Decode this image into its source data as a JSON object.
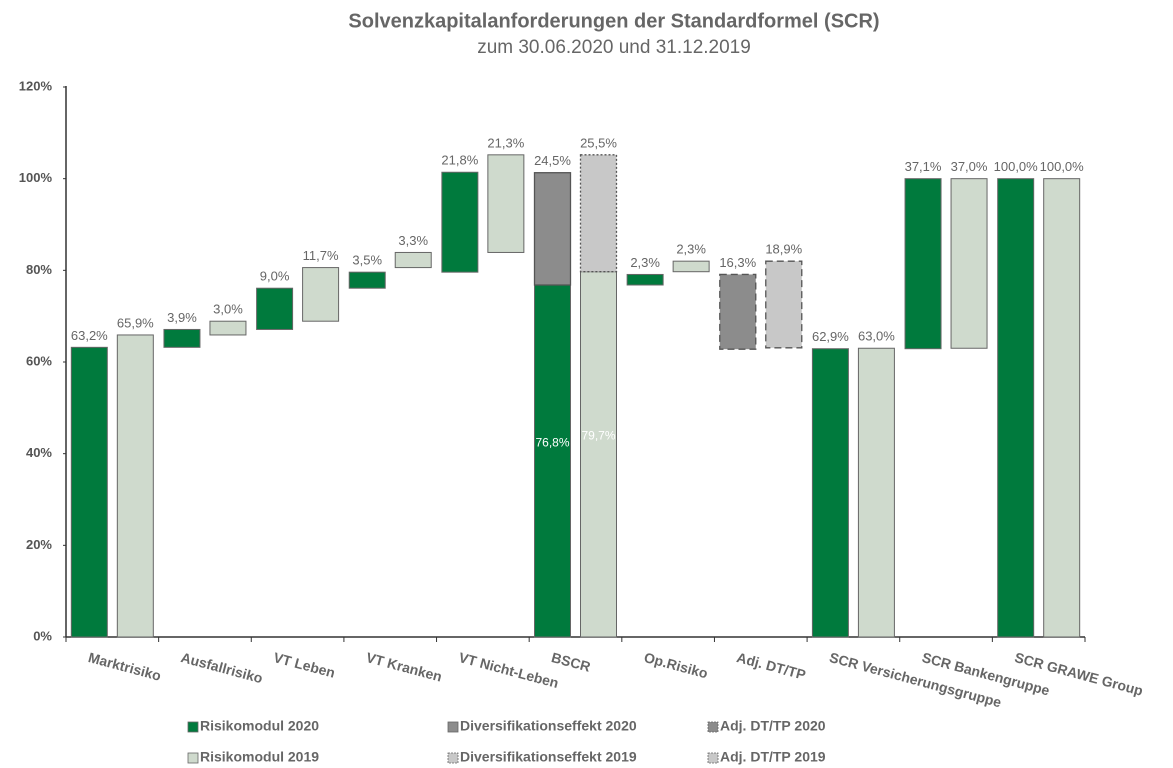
{
  "chart_data": {
    "type": "waterfall",
    "title": "Solvenzkapitalanforderungen der Standardformel (SCR)",
    "subtitle": "zum 30.06.2020 und 31.12.2019",
    "categories": [
      "Marktrisiko",
      "Ausfallrisiko",
      "VT Leben",
      "VT Kranken",
      "VT Nicht-Leben",
      "BSCR",
      "Op.Risiko",
      "Adj. DT/TP",
      "SCR Versicherungsgruppe",
      "SCR Bankengruppe",
      "SCR GRAWE Group"
    ],
    "totals": [
      true,
      false,
      false,
      false,
      false,
      true,
      false,
      false,
      true,
      false,
      true
    ],
    "ylim": [
      0,
      120
    ],
    "yticks": [
      {
        "value": 0,
        "label": "0%"
      },
      {
        "value": 20,
        "label": "20%"
      },
      {
        "value": 40,
        "label": "40%"
      },
      {
        "value": 60,
        "label": "60%"
      },
      {
        "value": 80,
        "label": "80%"
      },
      {
        "value": 100,
        "label": "100%"
      },
      {
        "value": 120,
        "label": "120%"
      }
    ],
    "series": [
      {
        "name": "Risikomodul 2020",
        "color": "#007a3d",
        "border_style": "solid",
        "values": [
          63.2,
          3.9,
          9.0,
          3.5,
          21.8,
          76.8,
          2.3,
          null,
          62.9,
          37.1,
          100.0
        ],
        "value_labels": [
          "63,2%",
          "3,9%",
          "9,0%",
          "3,5%",
          "21,8%",
          "76,8%",
          "2,3%",
          null,
          "62,9%",
          "37,1%",
          "100,0%"
        ]
      },
      {
        "name": "Diversifikationseffekt 2020",
        "color": "#8c8c8c",
        "border_style": "solid",
        "values": [
          null,
          null,
          null,
          null,
          null,
          24.5,
          null,
          null,
          null,
          null,
          null
        ],
        "value_labels": [
          null,
          null,
          null,
          null,
          null,
          "24,5%",
          null,
          null,
          null,
          null,
          null
        ]
      },
      {
        "name": "Adj. DT/TP 2020",
        "color": "#8c8c8c",
        "border_style": "dashed",
        "values": [
          null,
          null,
          null,
          null,
          null,
          null,
          null,
          16.3,
          null,
          null,
          null
        ],
        "value_labels": [
          null,
          null,
          null,
          null,
          null,
          null,
          null,
          "16,3%",
          null,
          null,
          null
        ]
      },
      {
        "name": "Risikomodul 2019",
        "color": "#cfdacd",
        "border_style": "solid",
        "values": [
          65.9,
          3.0,
          11.7,
          3.3,
          21.3,
          79.7,
          2.3,
          null,
          63.0,
          37.0,
          100.0
        ],
        "value_labels": [
          "65,9%",
          "3,0%",
          "11,7%",
          "3,3%",
          "21,3%",
          "79,7%",
          "2,3%",
          null,
          "63,0%",
          "37,0%",
          "100,0%"
        ]
      },
      {
        "name": "Diversifikationseffekt 2019",
        "color": "#c8c8c8",
        "border_style": "dotted",
        "values": [
          null,
          null,
          null,
          null,
          null,
          25.5,
          null,
          null,
          null,
          null,
          null
        ],
        "value_labels": [
          null,
          null,
          null,
          null,
          null,
          "25,5%",
          null,
          null,
          null,
          null,
          null
        ]
      },
      {
        "name": "Adj. DT/TP 2019",
        "color": "#c8c8c8",
        "border_style": "dashed",
        "values": [
          null,
          null,
          null,
          null,
          null,
          null,
          null,
          18.9,
          null,
          null,
          null
        ],
        "value_labels": [
          null,
          null,
          null,
          null,
          null,
          null,
          null,
          "18,9%",
          null,
          null,
          null
        ]
      }
    ]
  }
}
